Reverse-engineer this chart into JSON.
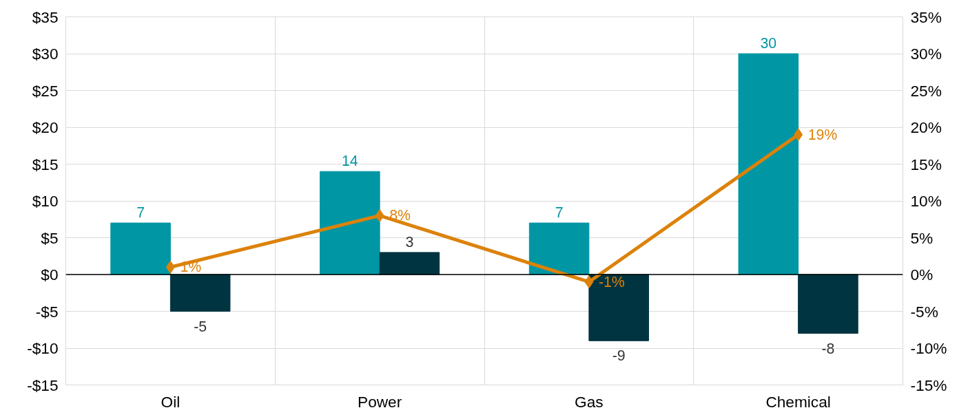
{
  "chart_data": {
    "type": "bar",
    "categories": [
      "Oil",
      "Power",
      "Gas",
      "Chemical"
    ],
    "series": [
      {
        "color": "#0096a4",
        "values": [
          7,
          14,
          7,
          30
        ]
      },
      {
        "color": "#003440",
        "values": [
          -5,
          3,
          -9,
          -8
        ]
      },
      {
        "type": "line",
        "axis": "y2",
        "color": "#dc820a",
        "values": [
          1,
          8,
          -1,
          19
        ],
        "value_labels": [
          "1%",
          "8%",
          "-1%",
          "19%"
        ]
      }
    ],
    "data_labels": true,
    "marker": "diamond",
    "line_style": "solid",
    "grid": true,
    "ylim": [
      -15,
      35
    ],
    "yticks": [
      {
        "value": -15,
        "label": "-$15"
      },
      {
        "value": -10,
        "label": "-$10"
      },
      {
        "value": -5,
        "label": "-$5"
      },
      {
        "value": 0,
        "label": "$0"
      },
      {
        "value": 5,
        "label": "$5"
      },
      {
        "value": 10,
        "label": "$10"
      },
      {
        "value": 15,
        "label": "$15"
      },
      {
        "value": 20,
        "label": "$20"
      },
      {
        "value": 25,
        "label": "$25"
      },
      {
        "value": 30,
        "label": "$30"
      },
      {
        "value": 35,
        "label": "$35"
      }
    ],
    "y2lim": [
      -15,
      35
    ],
    "y2ticks": [
      {
        "value": -15,
        "label": "-15%"
      },
      {
        "value": -10,
        "label": "-10%"
      },
      {
        "value": -5,
        "label": "-5%"
      },
      {
        "value": 0,
        "label": "0%"
      },
      {
        "value": 5,
        "label": "5%"
      },
      {
        "value": 10,
        "label": "10%"
      },
      {
        "value": 15,
        "label": "15%"
      },
      {
        "value": 20,
        "label": "20%"
      },
      {
        "value": 25,
        "label": "25%"
      },
      {
        "value": 30,
        "label": "30%"
      },
      {
        "value": 35,
        "label": "35%"
      }
    ]
  }
}
